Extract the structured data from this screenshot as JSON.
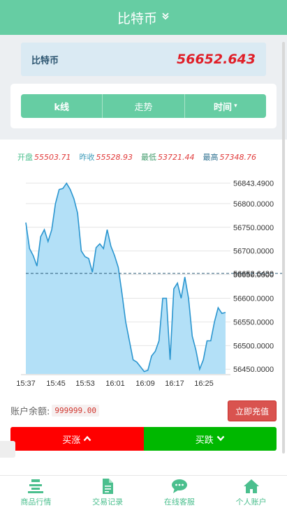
{
  "header": {
    "title": "比特币",
    "chevron_icon": "chevron-double-down-icon"
  },
  "price": {
    "name": "比特币",
    "value": "56652.643"
  },
  "tabs": [
    {
      "label": "k线"
    },
    {
      "label": "走势"
    },
    {
      "label": "时间",
      "caret": "▾"
    }
  ],
  "stats": {
    "open_label": "开盘",
    "open_value": "55503.71",
    "prev_label": "昨收",
    "prev_value": "55528.93",
    "low_label": "最低",
    "low_value": "53721.44",
    "high_label": "最高",
    "high_value": "57348.76"
  },
  "colors": {
    "accent": "#66cda3",
    "price_red": "#e01e27",
    "buy_up": "#ff0000",
    "buy_down": "#00b800",
    "chart_fill": "#b3e0f7",
    "chart_line": "#2a95cf"
  },
  "chart_data": {
    "type": "area",
    "ylim": [
      56440,
      56850
    ],
    "y_ticks": [
      "56843.4900",
      "56800.0000",
      "56750.0000",
      "56700.0000",
      "56650.0000",
      "56600.0000",
      "56550.0000",
      "56500.0000",
      "56450.0000"
    ],
    "x_ticks": [
      "15:37",
      "15:45",
      "15:53",
      "16:01",
      "16:09",
      "16:17",
      "16:25"
    ],
    "current_price": 56652.643,
    "current_label": "56652.6430",
    "values": [
      56760,
      56705,
      56690,
      56668,
      56730,
      56745,
      56720,
      56745,
      56800,
      56830,
      56832,
      56843,
      56830,
      56810,
      56780,
      56700,
      56688,
      56684,
      56655,
      56707,
      56715,
      56705,
      56745,
      56710,
      56690,
      56665,
      56610,
      56550,
      56510,
      56470,
      56465,
      56455,
      56445,
      56448,
      56478,
      56488,
      56510,
      56600,
      56600,
      56470,
      56620,
      56632,
      56600,
      56645,
      56600,
      56520,
      56490,
      56450,
      56470,
      56510,
      56510,
      56550,
      56580,
      56568,
      56570
    ]
  },
  "balance": {
    "label": "账户余额:",
    "amount": "999999.00"
  },
  "recharge_label": "立即充值",
  "buy_up": {
    "label": "买涨",
    "arrow": "⌃"
  },
  "buy_down": {
    "label": "买跌",
    "arrow": "⌄"
  },
  "footer": [
    {
      "label": "商品行情",
      "icon": "market-icon"
    },
    {
      "label": "交易记录",
      "icon": "document-icon"
    },
    {
      "label": "在线客服",
      "icon": "chat-icon"
    },
    {
      "label": "个人账户",
      "icon": "home-icon"
    }
  ]
}
